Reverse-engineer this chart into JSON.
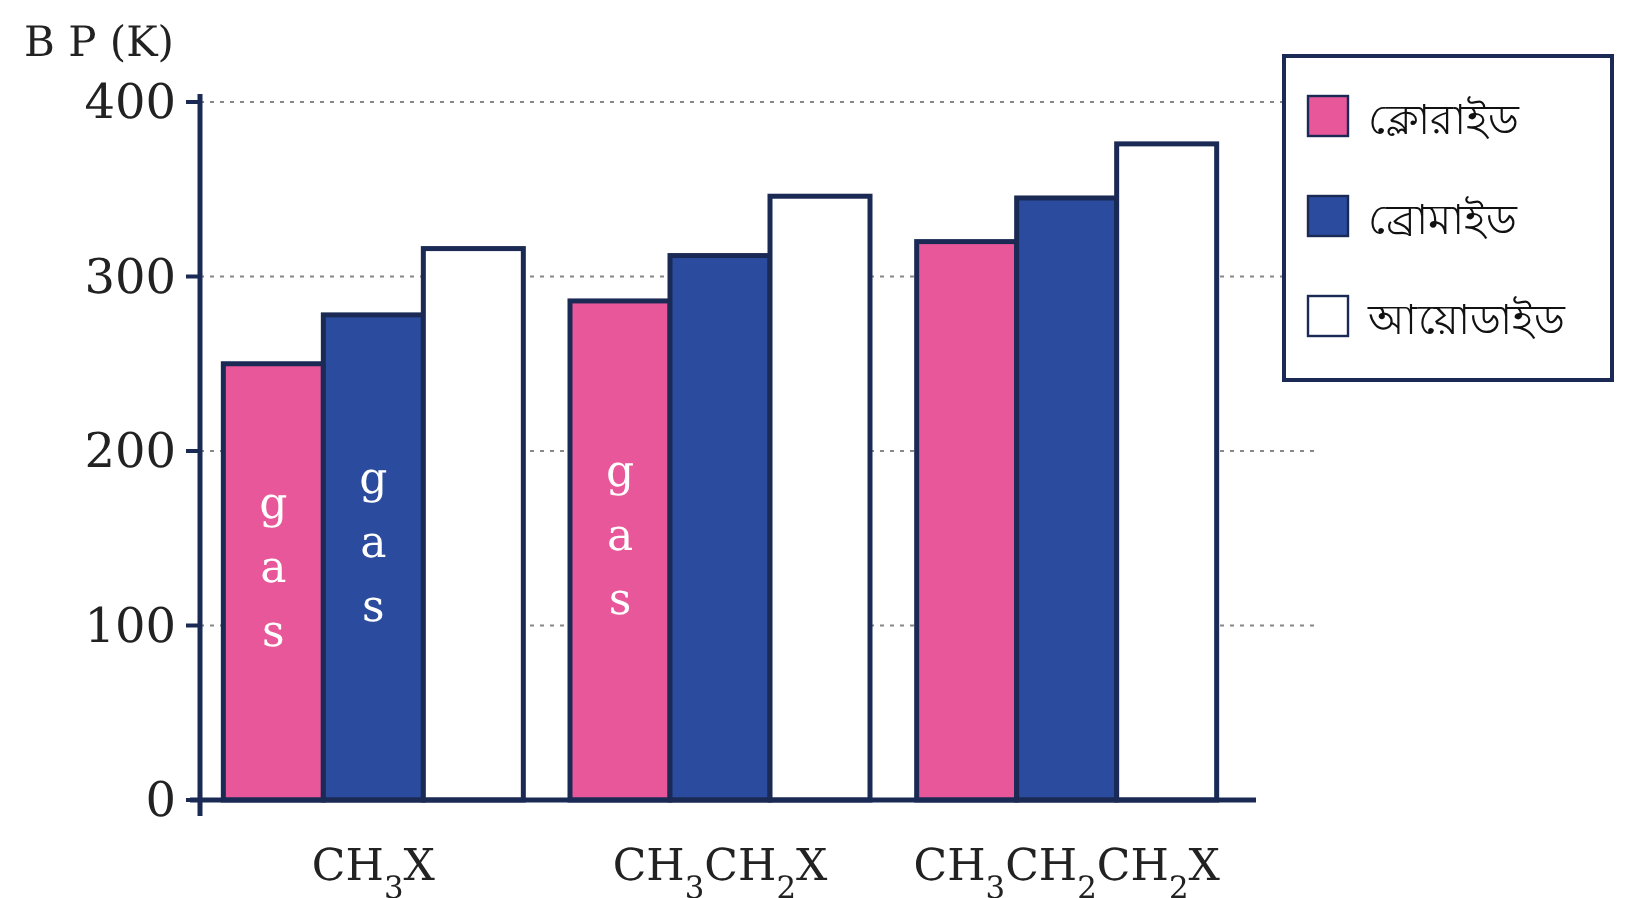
{
  "chart_data": {
    "type": "bar",
    "ylabel": "B P (K)",
    "categories": [
      "CH$_{3}$X",
      "CH$_{3}$CH$_{2}$X",
      "CH$_{3}$CH$_{2}$CH$_{2}$X"
    ],
    "series": [
      {
        "name": "ক্লোরাইড",
        "color": "#e8579a",
        "values": [
          250,
          286,
          320
        ],
        "value_labels": [
          "gas",
          "gas",
          null
        ]
      },
      {
        "name": "ব্রোমাইড",
        "color": "#2b4c9e",
        "values": [
          278,
          312,
          345
        ],
        "value_labels": [
          "gas",
          null,
          null
        ]
      },
      {
        "name": "আয়োডাইড",
        "color": "#ffffff",
        "values": [
          316,
          346,
          376
        ]
      }
    ],
    "ylim": [
      0,
      400
    ],
    "yticks": [
      0,
      100,
      200,
      300,
      400
    ],
    "grid": "y",
    "legend": "top right"
  }
}
